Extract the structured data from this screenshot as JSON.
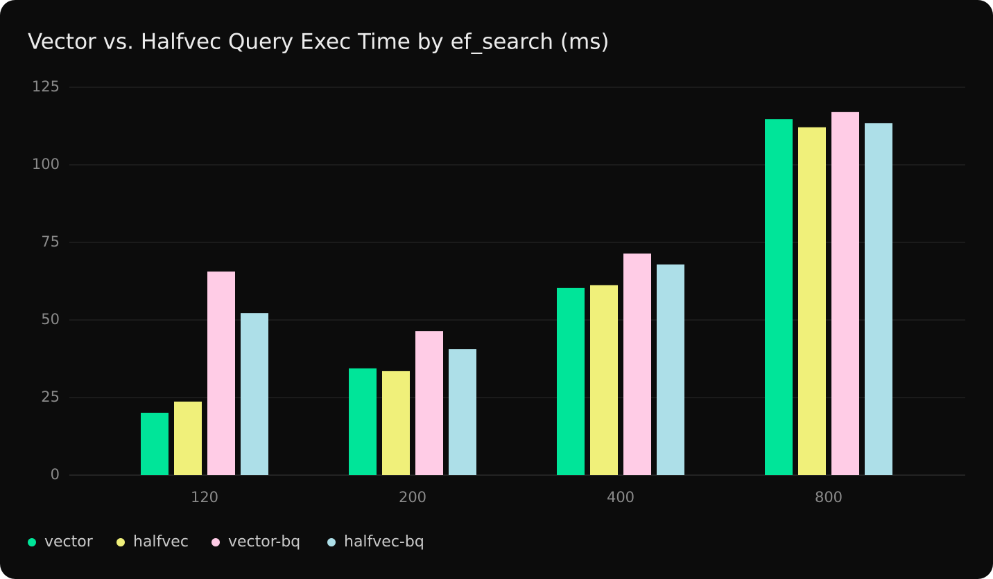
{
  "chart_data": {
    "type": "bar",
    "title": "Vector vs. Halfvec Query Exec Time by ef_search (ms)",
    "categories": [
      "120",
      "200",
      "400",
      "800"
    ],
    "series": [
      {
        "name": "vector",
        "color": "#00e599",
        "values": [
          20.1,
          34.4,
          60.3,
          114.7
        ]
      },
      {
        "name": "halfvec",
        "color": "#f0f07a",
        "values": [
          23.7,
          33.5,
          61.2,
          112.1
        ]
      },
      {
        "name": "vector-bq",
        "color": "#ffcce6",
        "values": [
          65.6,
          46.4,
          71.4,
          117
        ]
      },
      {
        "name": "halfvec-bq",
        "color": "#addfe8",
        "values": [
          52.2,
          40.6,
          67.9,
          113.4
        ]
      }
    ],
    "ylim": [
      0,
      125
    ],
    "yticks": [
      0,
      25,
      50,
      75,
      100,
      125
    ],
    "grid": true,
    "legend": "bottom-left"
  }
}
